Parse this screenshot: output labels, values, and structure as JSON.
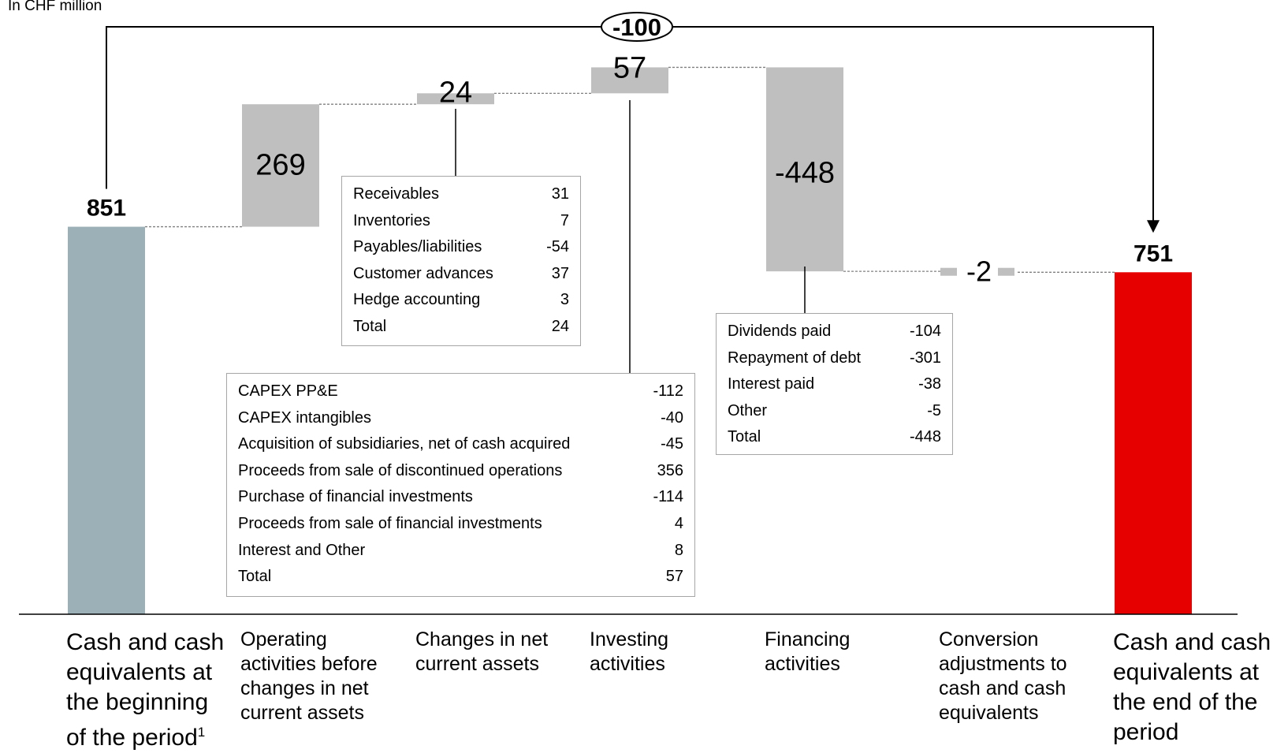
{
  "unit_label": "In CHF million",
  "chart_data": {
    "type": "bar",
    "subtype": "waterfall",
    "categories": [
      "Cash and cash equivalents at the beginning of the period",
      "Operating activities before changes in net current assets",
      "Changes in net current assets",
      "Investing activities",
      "Financing activities",
      "Conversion adjustments to cash and cash equivalents",
      "Cash and cash equivalents at the end of the period"
    ],
    "category_lines": [
      [
        "Cash and cash",
        "equivalents at",
        "the beginning",
        "of the period"
      ],
      [
        "Operating",
        "activities before",
        "changes in net",
        "current assets"
      ],
      [
        "Changes in net",
        "current assets"
      ],
      [
        "Investing",
        "activities"
      ],
      [
        "Financing",
        "activities"
      ],
      [
        "Conversion",
        "adjustments to",
        "cash and cash",
        "equivalents"
      ],
      [
        "Cash and cash",
        "equivalents at",
        "the end of the",
        "period"
      ]
    ],
    "footnote_marker": "1",
    "values": [
      851,
      269,
      24,
      57,
      -448,
      -2,
      751
    ],
    "value_labels": [
      "851",
      "269",
      "24",
      "57",
      "-448",
      "-2",
      "751"
    ],
    "measure": [
      "total",
      "relative",
      "relative",
      "relative",
      "relative",
      "relative",
      "total"
    ],
    "net_change": {
      "value": -100,
      "label": "-100"
    },
    "colors": {
      "start": "#9bb0b7",
      "step": "#bfbfbf",
      "end": "#e60000",
      "connector": "#808080",
      "box_border": "#a6a6a6"
    },
    "breakdowns": {
      "net_current_assets": {
        "rows": [
          {
            "label": "Receivables",
            "value": "31"
          },
          {
            "label": "Inventories",
            "value": "7"
          },
          {
            "label": "Payables/liabilities",
            "value": "-54"
          },
          {
            "label": "Customer advances",
            "value": "37"
          },
          {
            "label": "Hedge accounting",
            "value": "3"
          },
          {
            "label": "Total",
            "value": "24"
          }
        ]
      },
      "investing": {
        "rows": [
          {
            "label": "CAPEX PP&E",
            "value": "-112"
          },
          {
            "label": "CAPEX intangibles",
            "value": "-40"
          },
          {
            "label": "Acquisition of subsidiaries, net of cash acquired",
            "value": "-45"
          },
          {
            "label": "Proceeds from sale of discontinued operations",
            "value": "356"
          },
          {
            "label": "Purchase of financial investments",
            "value": "-114"
          },
          {
            "label": "Proceeds from sale of financial investments",
            "value": "4"
          },
          {
            "label": "Interest and Other",
            "value": "8"
          },
          {
            "label": "Total",
            "value": "57"
          }
        ]
      },
      "financing": {
        "rows": [
          {
            "label": "Dividends paid",
            "value": "-104"
          },
          {
            "label": "Repayment of debt",
            "value": "-301"
          },
          {
            "label": "Interest paid",
            "value": "-38"
          },
          {
            "label": "Other",
            "value": "-5"
          },
          {
            "label": "Total",
            "value": "-448"
          }
        ]
      }
    }
  }
}
